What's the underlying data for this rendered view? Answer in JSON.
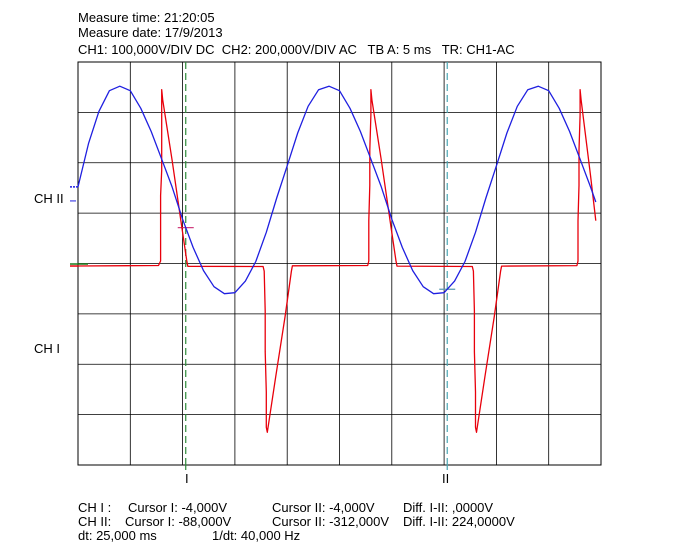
{
  "header": {
    "measure_time": "Measure time: 21:20:05",
    "measure_date": "Measure date: 17/9/2013",
    "settings": "CH1: 100,000V/DIV DC  CH2: 200,000V/DIV AC   TB A: 5 ms   TR: CH1-AC"
  },
  "footer": {
    "ch1_label": "CH I :",
    "ch1_cursor1": "Cursor I: -4,000V",
    "ch1_cursor2": "Cursor II: -4,000V",
    "ch1_diff": "Diff. I-II: ,0000V",
    "ch2_label": "CH II:",
    "ch2_cursor1": "Cursor I: -88,000V",
    "ch2_cursor2": "Cursor II: -312,000V",
    "ch2_diff": "Diff. I-II: 224,0000V",
    "dt": "dt: 25,000 ms",
    "inv_dt": "1/dt: 40,000 Hz"
  },
  "colors": {
    "ch1": "#e8000b",
    "ch2": "#1f1fe0",
    "cursor1": "#2e8b3a",
    "cursor2": "#4aa6b3",
    "grid": "#000000"
  },
  "chart_data": {
    "type": "line",
    "x_unit": "ms",
    "x_range": [
      0,
      50
    ],
    "y_unit": "div",
    "y_range": [
      -4,
      4
    ],
    "divisions": {
      "x": 10,
      "y": 8
    },
    "time_per_div_ms": 5,
    "grid": true,
    "channel_labels": {
      "ch1": "CH I",
      "ch2": "CH II"
    },
    "cursor_labels": {
      "c1": "I",
      "c2": "II"
    },
    "cursors_ms": [
      10.3,
      35.3
    ],
    "ch1_zero_div": -0.05,
    "ch2_zero_div": 1.52,
    "series": [
      {
        "name": "CH I",
        "color": "#e8000b",
        "points": [
          [
            0.0,
            0.0
          ],
          [
            7.7,
            0.0
          ],
          [
            7.7,
            0.0
          ],
          [
            7.9,
            0.1
          ],
          [
            7.9,
            0.9
          ],
          [
            7.9,
            1.4
          ],
          [
            8.0,
            1.9
          ],
          [
            8.0,
            2.2
          ],
          [
            8.0,
            2.9
          ],
          [
            8.0,
            3.2
          ],
          [
            8.0,
            3.5
          ],
          [
            8.1,
            3.3
          ],
          [
            9.0,
            2.1
          ],
          [
            9.9,
            0.8
          ],
          [
            10.4,
            0.1
          ],
          [
            10.5,
            0.0
          ],
          [
            17.7,
            0.0
          ],
          [
            17.8,
            -0.1
          ],
          [
            17.9,
            -0.9
          ],
          [
            17.9,
            -1.7
          ],
          [
            18.0,
            -2.5
          ],
          [
            18.0,
            -3.2
          ],
          [
            18.1,
            -3.3
          ],
          [
            18.9,
            -2.2
          ],
          [
            19.8,
            -1.0
          ],
          [
            20.4,
            -0.1
          ],
          [
            20.5,
            0.0
          ],
          [
            27.7,
            0.0
          ],
          [
            27.8,
            0.1
          ],
          [
            27.8,
            0.9
          ],
          [
            27.9,
            1.6
          ],
          [
            27.9,
            2.3
          ],
          [
            28.0,
            3.0
          ],
          [
            28.0,
            3.5
          ],
          [
            28.1,
            3.3
          ],
          [
            29.0,
            2.1
          ],
          [
            29.9,
            0.8
          ],
          [
            30.4,
            0.1
          ],
          [
            30.5,
            0.0
          ],
          [
            37.7,
            0.0
          ],
          [
            37.8,
            -0.1
          ],
          [
            37.9,
            -0.9
          ],
          [
            37.9,
            -1.7
          ],
          [
            38.0,
            -2.5
          ],
          [
            38.0,
            -3.2
          ],
          [
            38.1,
            -3.3
          ],
          [
            38.9,
            -2.2
          ],
          [
            39.8,
            -1.0
          ],
          [
            40.4,
            -0.1
          ],
          [
            40.5,
            0.0
          ],
          [
            47.7,
            0.0
          ],
          [
            47.8,
            0.1
          ],
          [
            47.8,
            0.9
          ],
          [
            47.9,
            1.6
          ],
          [
            47.9,
            2.3
          ],
          [
            48.0,
            3.0
          ],
          [
            48.0,
            3.5
          ],
          [
            48.1,
            3.3
          ],
          [
            49.0,
            1.8
          ],
          [
            49.5,
            0.9
          ]
        ]
      },
      {
        "name": "CH II",
        "color": "#1f1fe0",
        "points": [
          [
            0.0,
            0.0
          ],
          [
            1.0,
            0.86
          ],
          [
            2.0,
            1.5
          ],
          [
            3.0,
            1.91
          ],
          [
            4.0,
            2.0
          ],
          [
            5.0,
            1.91
          ],
          [
            6.0,
            1.56
          ],
          [
            7.0,
            1.1
          ],
          [
            8.0,
            0.55
          ],
          [
            9.0,
            0.0
          ],
          [
            10.0,
            -0.64
          ],
          [
            11.0,
            -1.2
          ],
          [
            12.0,
            -1.66
          ],
          [
            13.0,
            -1.98
          ],
          [
            14.0,
            -2.12
          ],
          [
            15.0,
            -2.1
          ],
          [
            16.0,
            -1.87
          ],
          [
            17.0,
            -1.48
          ],
          [
            18.0,
            -0.9
          ],
          [
            19.0,
            -0.22
          ],
          [
            20.0,
            0.42
          ],
          [
            21.0,
            1.07
          ],
          [
            22.0,
            1.6
          ],
          [
            23.0,
            1.93
          ],
          [
            24.0,
            2.0
          ],
          [
            25.0,
            1.91
          ],
          [
            26.0,
            1.56
          ],
          [
            27.0,
            1.1
          ],
          [
            28.0,
            0.55
          ],
          [
            29.0,
            0.0
          ],
          [
            30.0,
            -0.64
          ],
          [
            31.0,
            -1.2
          ],
          [
            32.0,
            -1.66
          ],
          [
            33.0,
            -1.98
          ],
          [
            34.0,
            -2.12
          ],
          [
            35.0,
            -2.1
          ],
          [
            36.0,
            -1.87
          ],
          [
            37.0,
            -1.48
          ],
          [
            38.0,
            -0.9
          ],
          [
            39.0,
            -0.22
          ],
          [
            40.0,
            0.42
          ],
          [
            41.0,
            1.07
          ],
          [
            42.0,
            1.6
          ],
          [
            43.0,
            1.93
          ],
          [
            44.0,
            2.0
          ],
          [
            45.0,
            1.91
          ],
          [
            46.0,
            1.56
          ],
          [
            47.0,
            1.1
          ],
          [
            48.0,
            0.55
          ],
          [
            49.0,
            0.0
          ],
          [
            49.5,
            -0.3
          ]
        ]
      }
    ]
  }
}
